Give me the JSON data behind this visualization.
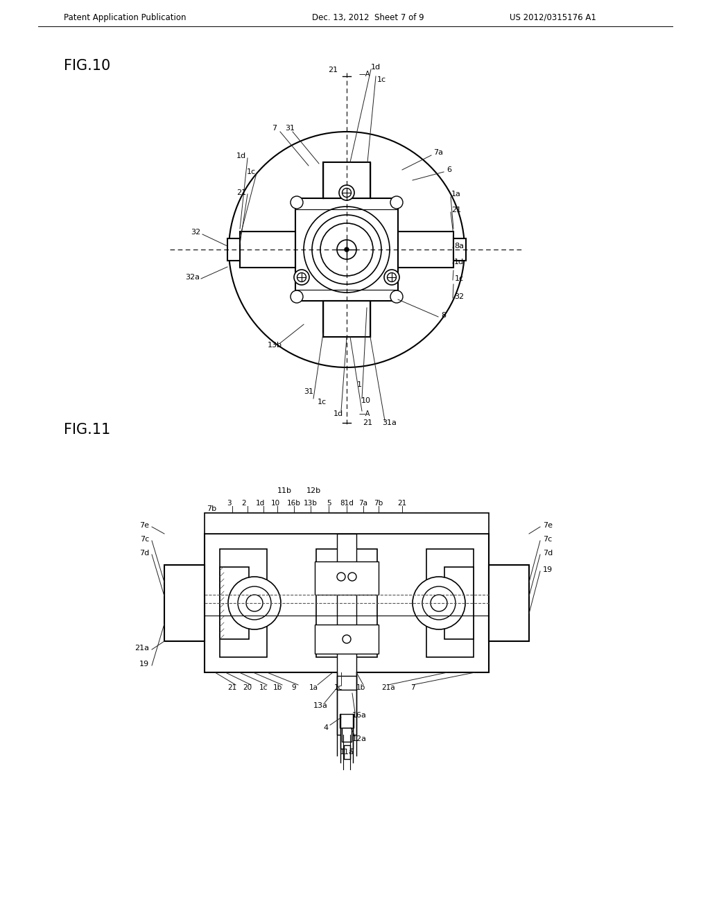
{
  "background_color": "#ffffff",
  "header_left": "Patent Application Publication",
  "header_mid": "Dec. 13, 2012  Sheet 7 of 9",
  "header_right": "US 2012/0315176 A1",
  "fig10_label": "FIG.10",
  "fig11_label": "FIG.11",
  "line_color": "#000000",
  "line_width": 1.2
}
